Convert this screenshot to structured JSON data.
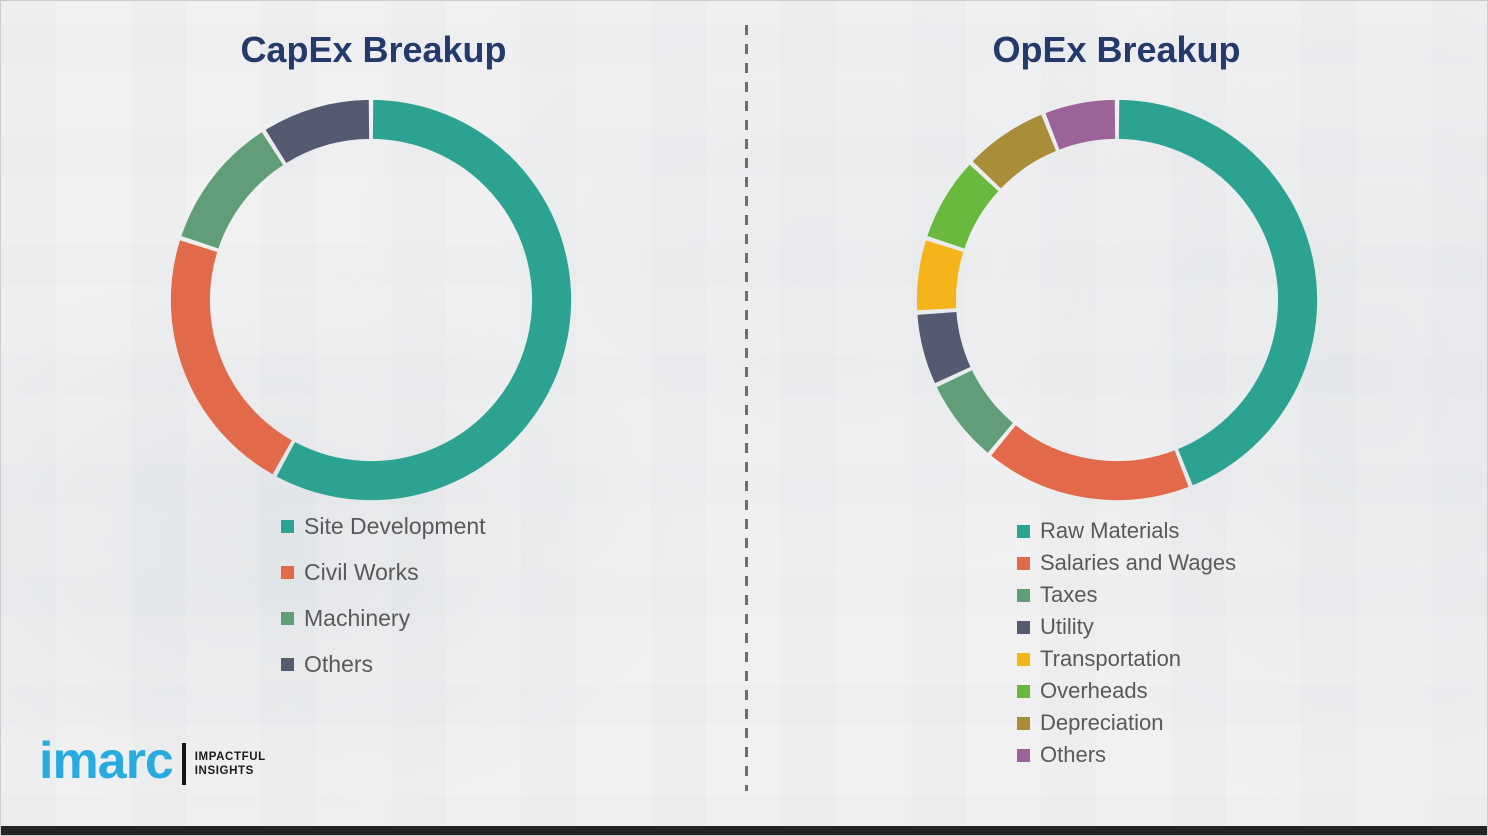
{
  "titles": {
    "capex": "CapEx Breakup",
    "opex": "OpEx Breakup",
    "title_color": "#243a6b"
  },
  "chart_data": [
    {
      "type": "pie",
      "subtype": "donut",
      "title": "CapEx Breakup",
      "labels": [
        "Site Development",
        "Civil Works",
        "Machinery",
        "Others"
      ],
      "values": [
        58,
        22,
        11,
        9
      ],
      "colors": [
        "#2ba390",
        "#e26a4b",
        "#619e77",
        "#545a70"
      ],
      "start_angle_deg": 0,
      "direction": "clockwise",
      "legend_position": "below-left",
      "units": "percent"
    },
    {
      "type": "pie",
      "subtype": "donut",
      "title": "OpEx Breakup",
      "labels": [
        "Raw Materials",
        "Salaries and Wages",
        "Taxes",
        "Utility",
        "Transportation",
        "Overheads",
        "Depreciation",
        "Others"
      ],
      "values": [
        44,
        17,
        7,
        6,
        6,
        7,
        7,
        6
      ],
      "colors": [
        "#2ba390",
        "#e26a4b",
        "#619e77",
        "#545a70",
        "#f6b41b",
        "#69b93e",
        "#a98d38",
        "#9c6399"
      ],
      "start_angle_deg": 0,
      "direction": "clockwise",
      "legend_position": "below-left",
      "units": "percent"
    }
  ],
  "divider": {
    "style": "vertical-dashed",
    "color": "#6e6e6e"
  },
  "logo": {
    "wordmark": "imarc",
    "tagline_line1": "IMPACTFUL",
    "tagline_line2": "INSIGHTS",
    "brand_color": "#29abe2"
  }
}
